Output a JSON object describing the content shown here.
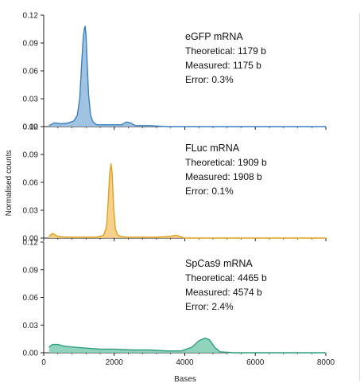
{
  "chart_data": {
    "type": "area",
    "x_label": "Bases",
    "y_label": "Normalised counts",
    "x_range": [
      0,
      8000
    ],
    "x_ticks": [
      "0",
      "2000",
      "4000",
      "6000",
      "8000"
    ],
    "panels": [
      {
        "name": "eGFP mRNA",
        "color": "#3c7fbf",
        "fill": "#8fb8dd",
        "y_range": [
          0,
          0.12
        ],
        "y_ticks": [
          "0.12",
          "0.09",
          "0.06",
          "0.03",
          "0.00"
        ],
        "annotation": {
          "title": "eGFP mRNA",
          "lines": [
            "Theoretical: 1179 b",
            "Measured: 1175 b",
            "Error: 0.3%"
          ]
        },
        "series": {
          "x": [
            150,
            300,
            500,
            700,
            850,
            950,
            1020,
            1080,
            1120,
            1150,
            1175,
            1200,
            1230,
            1270,
            1330,
            1400,
            1500,
            1700,
            2000,
            2200,
            2350,
            2450,
            2600,
            3000,
            3500,
            4000,
            5000,
            6000,
            7000,
            8000
          ],
          "y": [
            0.001,
            0.004,
            0.003,
            0.004,
            0.006,
            0.012,
            0.03,
            0.07,
            0.095,
            0.105,
            0.108,
            0.098,
            0.07,
            0.035,
            0.012,
            0.005,
            0.002,
            0.002,
            0.002,
            0.002,
            0.005,
            0.004,
            0.001,
            0.001,
            0.0,
            0.0,
            0.0,
            0.0,
            0.0,
            0.0
          ]
        }
      },
      {
        "name": "FLuc mRNA",
        "color": "#e0a020",
        "fill": "#f3c978",
        "y_range": [
          0,
          0.12
        ],
        "y_ticks": [
          "0.12",
          "0.09",
          "0.06",
          "0.03",
          "0.00"
        ],
        "annotation": {
          "title": "FLuc mRNA",
          "lines": [
            "Theoretical: 1909 b",
            "Measured: 1908 b",
            "Error: 0.1%"
          ]
        },
        "series": {
          "x": [
            150,
            250,
            400,
            600,
            900,
            1200,
            1500,
            1700,
            1780,
            1830,
            1870,
            1908,
            1940,
            1980,
            2030,
            2100,
            2300,
            2700,
            3200,
            3600,
            3750,
            3850,
            4000,
            4500,
            5000,
            6000,
            7000,
            8000
          ],
          "y": [
            0.002,
            0.005,
            0.002,
            0.001,
            0.001,
            0.001,
            0.001,
            0.003,
            0.012,
            0.04,
            0.07,
            0.08,
            0.07,
            0.035,
            0.01,
            0.003,
            0.001,
            0.001,
            0.001,
            0.002,
            0.003,
            0.002,
            0.0,
            0.0,
            0.0,
            0.0,
            0.0,
            0.0
          ]
        }
      },
      {
        "name": "SpCas9 mRNA",
        "color": "#2e9e7e",
        "fill": "#7ecdb3",
        "y_range": [
          0,
          0.12
        ],
        "y_ticks": [
          "0.12",
          "0.09",
          "0.06",
          "0.03",
          "0.00"
        ],
        "annotation": {
          "title": "SpCas9 mRNA",
          "lines": [
            "Theoretical: 4465 b",
            "Measured: 4574 b",
            "Error: 2.4%"
          ]
        },
        "series": {
          "x": [
            150,
            250,
            400,
            600,
            900,
            1200,
            1600,
            2000,
            2500,
            3000,
            3500,
            3900,
            4200,
            4400,
            4574,
            4700,
            4850,
            5000,
            5400,
            6000,
            7000,
            8000
          ],
          "y": [
            0.006,
            0.009,
            0.009,
            0.007,
            0.006,
            0.005,
            0.004,
            0.004,
            0.003,
            0.003,
            0.002,
            0.002,
            0.006,
            0.013,
            0.016,
            0.014,
            0.006,
            0.001,
            0.0,
            0.0,
            0.0,
            0.0
          ]
        }
      }
    ]
  }
}
